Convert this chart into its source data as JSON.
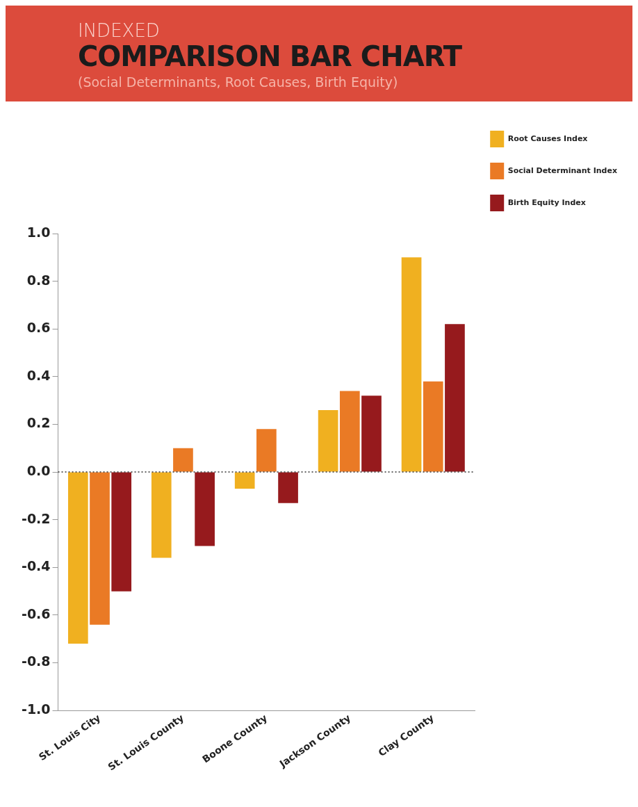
{
  "chart_data": {
    "type": "bar",
    "title": "COMPARISON BAR CHART",
    "subtitle": "(Social Determinants, Root Causes, Birth Equity)",
    "annotations": [
      "INDEXED"
    ],
    "categories": [
      "St. Louis City",
      "St. Louis County",
      "Boone County",
      "Jackson County",
      "Clay County"
    ],
    "series": [
      {
        "name": "Root Causes Index",
        "color": "#f0b020",
        "values": [
          -0.72,
          -0.36,
          -0.07,
          0.26,
          0.9
        ]
      },
      {
        "name": "Social Determinant Index",
        "color": "#ea7a25",
        "values": [
          -0.64,
          0.1,
          0.18,
          0.34,
          0.38
        ]
      },
      {
        "name": "Birth Equity Index",
        "color": "#961a1d",
        "values": [
          -0.5,
          -0.31,
          -0.13,
          0.32,
          0.62
        ]
      }
    ],
    "ylim": [
      -1,
      1
    ],
    "yticks": [
      {
        "value": -1,
        "label": "-1.0"
      },
      {
        "value": -0.8,
        "label": "-0.8"
      },
      {
        "value": -0.6,
        "label": "-0.6"
      },
      {
        "value": -0.4,
        "label": "-0.4"
      },
      {
        "value": -0.2,
        "label": "-0.2"
      },
      {
        "value": 0,
        "label": "0.0"
      },
      {
        "value": 0.2,
        "label": "0.2"
      },
      {
        "value": 0.4,
        "label": "0.4"
      },
      {
        "value": 0.6,
        "label": "0.6"
      },
      {
        "value": 0.8,
        "label": "0.8"
      },
      {
        "value": 1,
        "label": "1.0"
      }
    ],
    "ref_lines": [
      {
        "axis": "y",
        "value": 0,
        "color": "#333333",
        "line_style": "dotted"
      }
    ],
    "grid": false,
    "legend": "top right"
  }
}
